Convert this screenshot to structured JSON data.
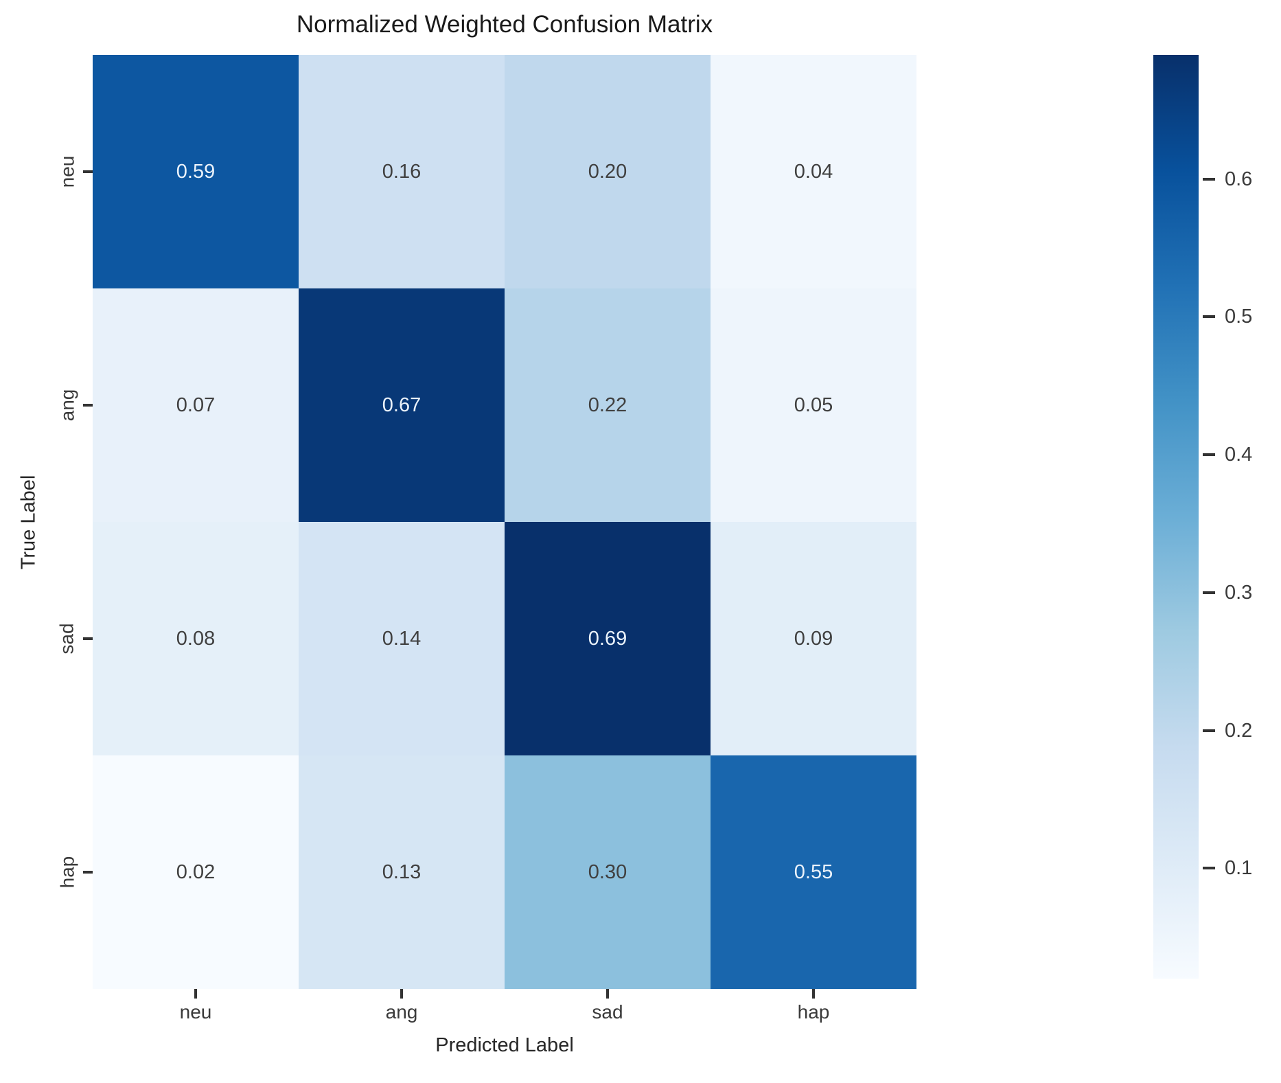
{
  "figure": {
    "title": "Normalized Weighted Confusion Matrix",
    "xlabel": "Predicted Label",
    "ylabel": "True Label"
  },
  "chart_data": {
    "type": "heatmap",
    "title": "Normalized Weighted Confusion Matrix",
    "xlabel": "Predicted Label",
    "ylabel": "True Label",
    "x_categories": [
      "neu",
      "ang",
      "sad",
      "hap"
    ],
    "y_categories": [
      "neu",
      "ang",
      "sad",
      "hap"
    ],
    "series": [
      {
        "name": "neu",
        "values": [
          0.59,
          0.16,
          0.2,
          0.04
        ]
      },
      {
        "name": "ang",
        "values": [
          0.07,
          0.67,
          0.22,
          0.05
        ]
      },
      {
        "name": "sad",
        "values": [
          0.08,
          0.14,
          0.69,
          0.09
        ]
      },
      {
        "name": "hap",
        "values": [
          0.02,
          0.13,
          0.3,
          0.55
        ]
      }
    ],
    "cell_labels": [
      [
        "0.59",
        "0.16",
        "0.20",
        "0.04"
      ],
      [
        "0.07",
        "0.67",
        "0.22",
        "0.05"
      ],
      [
        "0.08",
        "0.14",
        "0.69",
        "0.09"
      ],
      [
        "0.02",
        "0.13",
        "0.30",
        "0.55"
      ]
    ],
    "colormap": "Blues",
    "vmin": 0.02,
    "vmax": 0.69,
    "colorbar_ticks": [
      0.6,
      0.5,
      0.4,
      0.3,
      0.2,
      0.1
    ],
    "colorbar_tick_labels": [
      "0.6",
      "0.5",
      "0.4",
      "0.3",
      "0.2",
      "0.1"
    ],
    "legend_position": "right-colorbar",
    "grid": false
  },
  "colors": {
    "background": "#ffffff",
    "title_text": "#1a1a1a",
    "tick_text": "#3a3a3a",
    "annotation_dark": "#404040",
    "annotation_light": "#eaf2fa",
    "tick_mark": "#333333",
    "colormap_anchors": [
      "#f7fbff",
      "#deebf7",
      "#c6dbef",
      "#9ecae1",
      "#6baed6",
      "#4292c6",
      "#2171b5",
      "#08519c",
      "#08306b"
    ]
  }
}
